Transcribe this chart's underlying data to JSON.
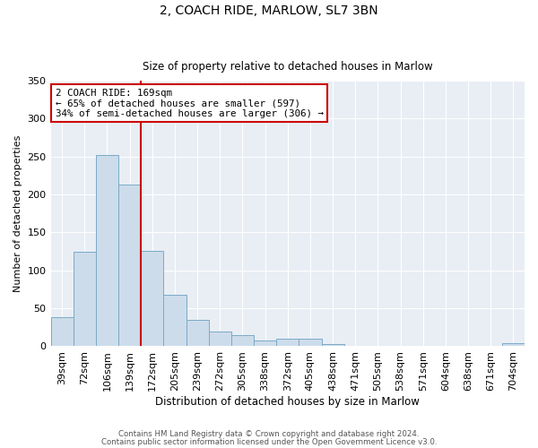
{
  "title": "2, COACH RIDE, MARLOW, SL7 3BN",
  "subtitle": "Size of property relative to detached houses in Marlow",
  "xlabel": "Distribution of detached houses by size in Marlow",
  "ylabel": "Number of detached properties",
  "bar_labels": [
    "39sqm",
    "72sqm",
    "106sqm",
    "139sqm",
    "172sqm",
    "205sqm",
    "239sqm",
    "272sqm",
    "305sqm",
    "338sqm",
    "372sqm",
    "405sqm",
    "438sqm",
    "471sqm",
    "505sqm",
    "538sqm",
    "571sqm",
    "604sqm",
    "638sqm",
    "671sqm",
    "704sqm"
  ],
  "bar_values": [
    38,
    124,
    252,
    213,
    125,
    68,
    35,
    20,
    15,
    8,
    10,
    10,
    3,
    1,
    0,
    0,
    0,
    0,
    0,
    0,
    4
  ],
  "bar_color": "#cddcea",
  "bar_edge_color": "#7baac8",
  "vline_pos": 3.5,
  "vline_color": "#cc0000",
  "ylim": [
    0,
    350
  ],
  "yticks": [
    0,
    50,
    100,
    150,
    200,
    250,
    300,
    350
  ],
  "annotation_title": "2 COACH RIDE: 169sqm",
  "annotation_line1": "← 65% of detached houses are smaller (597)",
  "annotation_line2": "34% of semi-detached houses are larger (306) →",
  "annotation_box_color": "#cc0000",
  "footer1": "Contains HM Land Registry data © Crown copyright and database right 2024.",
  "footer2": "Contains public sector information licensed under the Open Government Licence v3.0.",
  "background_color": "#e8eef4"
}
